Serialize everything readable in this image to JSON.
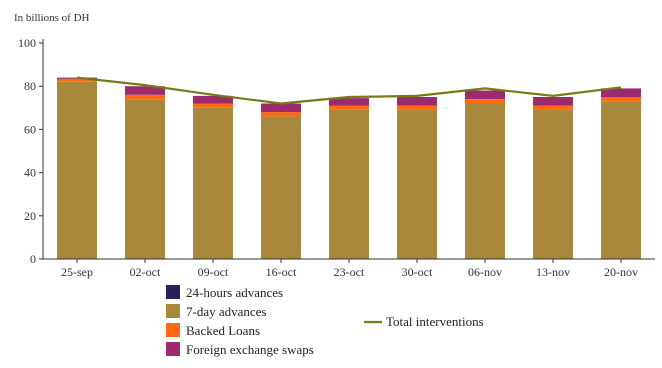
{
  "chart_data": {
    "type": "bar",
    "stacked": true,
    "unit_label": "In billions of DH",
    "categories": [
      "25-sep",
      "02-oct",
      "09-oct",
      "16-oct",
      "23-oct",
      "30-oct",
      "06-nov",
      "13-nov",
      "20-nov"
    ],
    "ylim": [
      0,
      100
    ],
    "yticks": [
      "0",
      "20",
      "40",
      "60",
      "80",
      "100"
    ],
    "grid": false,
    "legend_position": "bottom",
    "series": [
      {
        "name": "24-hours advances",
        "color": "#2a1f5c",
        "values": [
          0,
          0,
          0,
          0,
          0,
          0,
          0,
          0,
          0
        ]
      },
      {
        "name": "7-day advances",
        "color": "#a8893b",
        "values": [
          82,
          74,
          70,
          66,
          69,
          69,
          72,
          69,
          73
        ]
      },
      {
        "name": "Backed Loans",
        "color": "#ff6a10",
        "values": [
          1.5,
          2,
          2,
          2,
          2,
          2,
          2,
          2,
          2
        ]
      },
      {
        "name": "Foreign exchange swaps",
        "color": "#9b2b6e",
        "values": [
          0.5,
          4,
          3.5,
          4,
          3.5,
          4,
          4,
          4,
          4
        ]
      }
    ],
    "line": {
      "name": "Total interventions",
      "color": "#7a7a14",
      "values": [
        84,
        80.5,
        76,
        72,
        75,
        75.5,
        79,
        75.5,
        79.5
      ]
    }
  }
}
